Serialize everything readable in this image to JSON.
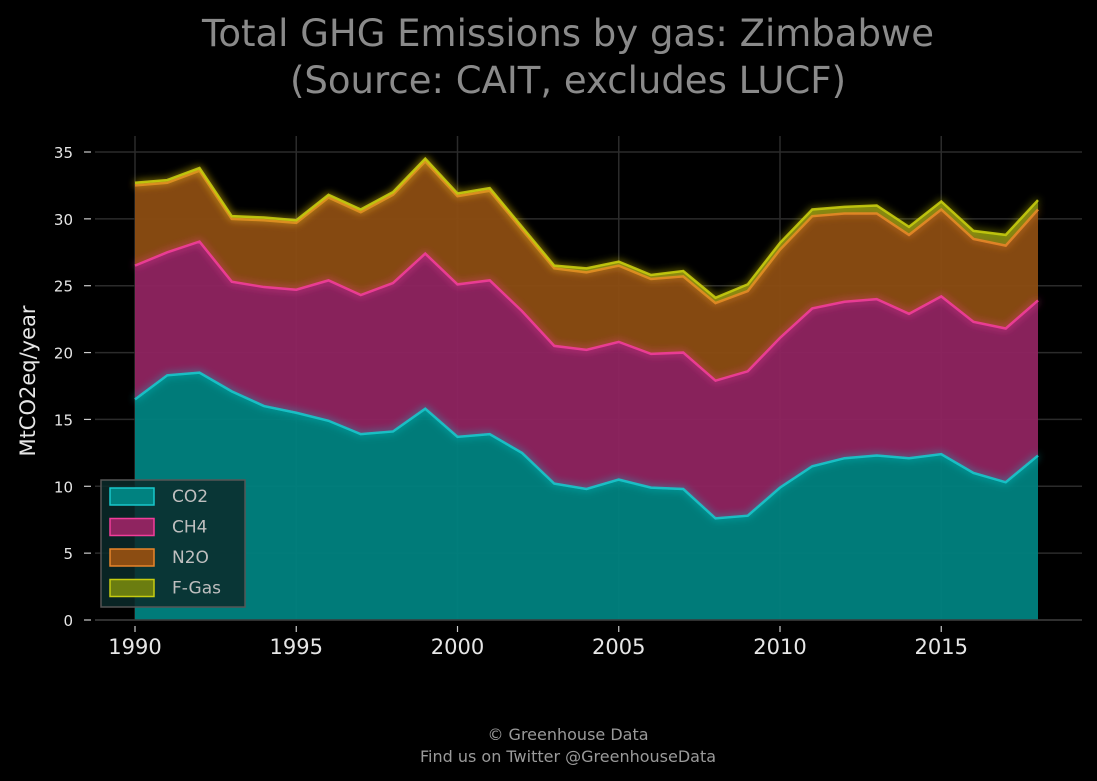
{
  "chart_data": {
    "type": "area",
    "stacked": true,
    "title": [
      "Total GHG Emissions by gas: Zimbabwe",
      "(Source: CAIT, excludes LUCF)"
    ],
    "xlabel": "",
    "ylabel": "MtCO2eq/year",
    "xlim": [
      1990,
      2018
    ],
    "ylim": [
      0,
      36
    ],
    "x_ticks": [
      1990,
      1995,
      2000,
      2005,
      2010,
      2015
    ],
    "y_ticks": [
      0,
      5,
      10,
      15,
      20,
      25,
      30,
      35
    ],
    "grid": true,
    "legend_position": "lower-left",
    "x": [
      1990,
      1991,
      1992,
      1993,
      1994,
      1995,
      1996,
      1997,
      1998,
      1999,
      2000,
      2001,
      2002,
      2003,
      2004,
      2005,
      2006,
      2007,
      2008,
      2009,
      2010,
      2011,
      2012,
      2013,
      2014,
      2015,
      2016,
      2017,
      2018
    ],
    "series": [
      {
        "name": "CO2",
        "color": "#19c8cc",
        "fill": "#008280",
        "values": [
          16.5,
          18.3,
          18.5,
          17.1,
          16.0,
          15.5,
          14.9,
          13.9,
          14.1,
          15.8,
          13.7,
          13.9,
          12.5,
          10.2,
          9.8,
          10.5,
          9.9,
          9.8,
          7.6,
          7.8,
          9.9,
          11.5,
          12.1,
          12.3,
          12.1,
          12.4,
          11.0,
          10.3,
          12.3
        ]
      },
      {
        "name": "CH4",
        "color": "#f23d9a",
        "fill": "#8f2460",
        "values": [
          10.0,
          9.2,
          9.8,
          8.2,
          8.9,
          9.2,
          10.5,
          10.4,
          11.1,
          11.6,
          11.4,
          11.5,
          10.6,
          10.3,
          10.4,
          10.3,
          10.0,
          10.2,
          10.3,
          10.8,
          11.2,
          11.8,
          11.7,
          11.7,
          10.8,
          11.8,
          11.3,
          11.5,
          11.6
        ]
      },
      {
        "name": "N2O",
        "color": "#e8852a",
        "fill": "#8c4d12",
        "values": [
          6.0,
          5.2,
          5.3,
          4.7,
          5.0,
          5.0,
          6.2,
          6.2,
          6.6,
          6.9,
          6.6,
          6.7,
          6.1,
          5.8,
          5.8,
          5.7,
          5.6,
          5.7,
          5.8,
          6.0,
          6.6,
          6.9,
          6.6,
          6.4,
          5.9,
          6.5,
          6.2,
          6.2,
          6.8
        ]
      },
      {
        "name": "F-Gas",
        "color": "#c6cc10",
        "fill": "#6b7d10",
        "values": [
          0.2,
          0.2,
          0.2,
          0.2,
          0.2,
          0.2,
          0.2,
          0.2,
          0.2,
          0.2,
          0.2,
          0.2,
          0.2,
          0.2,
          0.3,
          0.3,
          0.3,
          0.4,
          0.4,
          0.5,
          0.5,
          0.5,
          0.5,
          0.6,
          0.6,
          0.6,
          0.6,
          0.8,
          0.7
        ]
      }
    ]
  },
  "footer": {
    "line1": "© Greenhouse Data",
    "line2": "Find us on Twitter @GreenhouseData"
  }
}
